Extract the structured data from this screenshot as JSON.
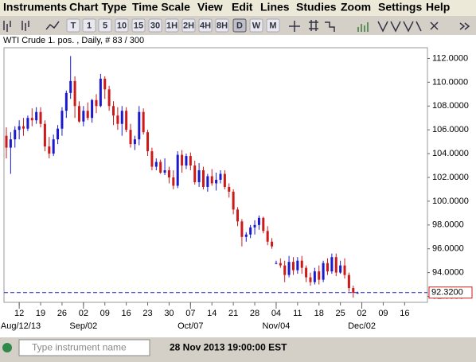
{
  "menu": [
    "Instruments",
    "Chart Type",
    "Time Scale",
    "View",
    "Edit",
    "Lines",
    "Studies",
    "Zoom",
    "Settings",
    "Help"
  ],
  "toolbar": [
    "T",
    "1",
    "5",
    "10",
    "15",
    "30",
    "1H",
    "2H",
    "4H",
    "8H",
    "D",
    "W",
    "M"
  ],
  "status": {
    "search_placeholder": "Type instrument name",
    "time": "28 Nov 2013 19:00:00 EST"
  },
  "chart_data": {
    "type": "candlestick",
    "title": "WTI Crude 1. pos. , Daily, # 83 / 300",
    "x": [
      "2013-08-07",
      "2013-08-08",
      "2013-08-09",
      "2013-08-12",
      "2013-08-13",
      "2013-08-14",
      "2013-08-15",
      "2013-08-16",
      "2013-08-19",
      "2013-08-20",
      "2013-08-21",
      "2013-08-22",
      "2013-08-23",
      "2013-08-26",
      "2013-08-27",
      "2013-08-28",
      "2013-08-29",
      "2013-08-30",
      "2013-09-02",
      "2013-09-03",
      "2013-09-04",
      "2013-09-05",
      "2013-09-06",
      "2013-09-09",
      "2013-09-10",
      "2013-09-11",
      "2013-09-12",
      "2013-09-13",
      "2013-09-16",
      "2013-09-17",
      "2013-09-18",
      "2013-09-19",
      "2013-09-20",
      "2013-09-23",
      "2013-09-24",
      "2013-09-25",
      "2013-09-26",
      "2013-09-27",
      "2013-09-30",
      "2013-10-01",
      "2013-10-02",
      "2013-10-03",
      "2013-10-04",
      "2013-10-07",
      "2013-10-08",
      "2013-10-09",
      "2013-10-10",
      "2013-10-11",
      "2013-10-14",
      "2013-10-15",
      "2013-10-16",
      "2013-10-17",
      "2013-10-18",
      "2013-10-21",
      "2013-10-22",
      "2013-10-23",
      "2013-10-24",
      "2013-10-25",
      "2013-10-28",
      "2013-10-29",
      "2013-10-30",
      "2013-10-31",
      "2013-11-01",
      "2013-11-04",
      "2013-11-05",
      "2013-11-06",
      "2013-11-07",
      "2013-11-08",
      "2013-11-11",
      "2013-11-12",
      "2013-11-13",
      "2013-11-14",
      "2013-11-15",
      "2013-11-18",
      "2013-11-19",
      "2013-11-20",
      "2013-11-21",
      "2013-11-22",
      "2013-11-25",
      "2013-11-26",
      "2013-11-27",
      "2013-11-28",
      "2013-11-29"
    ],
    "open": [
      105.5,
      104.5,
      105.2,
      106.0,
      106.3,
      106.1,
      107.0,
      106.8,
      107.5,
      106.5,
      104.6,
      104.0,
      105.2,
      106.1,
      107.6,
      109.1,
      110.1,
      108.0,
      106.7,
      107.6,
      107.0,
      108.5,
      108.0,
      110.3,
      109.4,
      108.0,
      107.2,
      106.5,
      107.6,
      106.0,
      104.8,
      105.2,
      107.5,
      105.8,
      104.2,
      102.9,
      103.3,
      102.4,
      102.6,
      102.0,
      101.3,
      103.9,
      103.0,
      103.8,
      103.0,
      101.6,
      102.6,
      101.2,
      102.1,
      101.5,
      101.8,
      102.3,
      101.2,
      100.8,
      99.3,
      98.3,
      97.0,
      97.2,
      97.8,
      98.0,
      98.6,
      97.5,
      96.6,
      94.8,
      94.8,
      94.6,
      93.8,
      94.9,
      94.2,
      95.0,
      94.4,
      93.6,
      93.2,
      94.1,
      93.4,
      94.8,
      94.1,
      95.3,
      94.0,
      94.6,
      93.8,
      92.7,
      92.3
    ],
    "high": [
      106.2,
      105.8,
      106.3,
      106.8,
      107.0,
      107.2,
      107.8,
      107.9,
      107.9,
      106.8,
      105.4,
      105.6,
      106.4,
      107.9,
      109.3,
      112.2,
      110.5,
      108.4,
      108.0,
      108.3,
      108.6,
      109.0,
      110.7,
      110.5,
      109.7,
      108.4,
      107.9,
      108.0,
      107.9,
      106.5,
      105.5,
      108.0,
      107.8,
      106.0,
      104.5,
      103.6,
      103.5,
      103.6,
      102.9,
      102.6,
      104.2,
      104.3,
      104.0,
      104.1,
      103.4,
      103.2,
      102.9,
      102.3,
      102.7,
      102.4,
      102.6,
      102.6,
      101.5,
      101.0,
      99.5,
      98.5,
      97.4,
      98.0,
      98.4,
      98.8,
      98.7,
      97.9,
      96.9,
      95.0,
      95.2,
      95.0,
      95.4,
      95.3,
      95.3,
      95.4,
      94.6,
      94.0,
      94.4,
      94.6,
      95.0,
      95.2,
      95.6,
      95.6,
      95.0,
      95.2,
      94.0,
      92.9,
      92.4
    ],
    "low": [
      103.6,
      102.3,
      104.5,
      105.2,
      105.5,
      105.9,
      106.3,
      106.5,
      106.2,
      104.2,
      103.6,
      103.8,
      104.8,
      105.5,
      107.0,
      108.6,
      107.0,
      106.6,
      106.3,
      106.8,
      106.6,
      107.4,
      107.9,
      108.6,
      107.6,
      106.4,
      106.0,
      105.5,
      105.8,
      104.5,
      104.3,
      104.7,
      105.6,
      103.8,
      102.6,
      102.6,
      102.3,
      102.2,
      101.5,
      101.0,
      101.1,
      102.4,
      102.7,
      102.6,
      101.4,
      101.2,
      101.0,
      100.8,
      101.3,
      100.9,
      101.5,
      101.0,
      100.3,
      98.9,
      97.9,
      96.2,
      96.6,
      96.9,
      97.2,
      97.6,
      97.3,
      96.3,
      96.0,
      94.7,
      94.4,
      93.2,
      93.6,
      93.8,
      93.9,
      93.9,
      93.2,
      92.9,
      93.0,
      93.0,
      93.2,
      93.8,
      93.9,
      93.7,
      93.9,
      93.5,
      92.4,
      91.9,
      92.2
    ],
    "close": [
      104.5,
      105.2,
      106.0,
      106.3,
      106.1,
      107.0,
      106.8,
      107.5,
      106.5,
      104.6,
      104.0,
      105.2,
      106.1,
      107.6,
      109.1,
      110.1,
      108.0,
      106.7,
      107.6,
      107.0,
      108.5,
      108.0,
      110.3,
      109.4,
      108.0,
      107.2,
      106.5,
      107.6,
      106.0,
      104.8,
      105.2,
      107.5,
      105.8,
      104.2,
      102.9,
      103.3,
      102.4,
      102.6,
      102.0,
      101.3,
      103.9,
      103.0,
      103.8,
      103.0,
      101.6,
      102.6,
      101.2,
      102.1,
      101.5,
      101.8,
      102.3,
      101.2,
      100.8,
      99.3,
      98.3,
      97.0,
      97.2,
      97.8,
      98.0,
      98.6,
      97.5,
      96.6,
      96.2,
      94.8,
      94.6,
      93.8,
      94.9,
      94.2,
      95.0,
      94.4,
      93.6,
      93.2,
      94.1,
      93.4,
      94.8,
      94.1,
      95.3,
      94.0,
      94.6,
      93.8,
      92.7,
      92.3,
      92.32
    ],
    "up_color": "#1a1acc",
    "down_color": "#cc1a1a",
    "ylim": [
      91.5,
      112.9
    ],
    "yticks": [
      {
        "value": 92,
        "label": "92.0000"
      },
      {
        "value": 94,
        "label": "94.0000"
      },
      {
        "value": 96,
        "label": "96.0000"
      },
      {
        "value": 98,
        "label": "98.0000"
      },
      {
        "value": 100,
        "label": "100.0000"
      },
      {
        "value": 102,
        "label": "102.0000"
      },
      {
        "value": 104,
        "label": "104.0000"
      },
      {
        "value": 106,
        "label": "106.0000"
      },
      {
        "value": 108,
        "label": "108.0000"
      },
      {
        "value": 110,
        "label": "110.0000"
      },
      {
        "value": 112,
        "label": "112.0000"
      }
    ],
    "xticks": [
      {
        "value": "2013-08-12",
        "label": "12"
      },
      {
        "value": "2013-08-19",
        "label": "19"
      },
      {
        "value": "2013-08-26",
        "label": "26"
      },
      {
        "value": "2013-09-02",
        "label": "02"
      },
      {
        "value": "2013-09-09",
        "label": "09"
      },
      {
        "value": "2013-09-16",
        "label": "16"
      },
      {
        "value": "2013-09-23",
        "label": "23"
      },
      {
        "value": "2013-09-30",
        "label": "30"
      },
      {
        "value": "2013-10-07",
        "label": "07"
      },
      {
        "value": "2013-10-14",
        "label": "14"
      },
      {
        "value": "2013-10-21",
        "label": "21"
      },
      {
        "value": "2013-10-28",
        "label": "28"
      },
      {
        "value": "2013-11-04",
        "label": "04"
      },
      {
        "value": "2013-11-11",
        "label": "11"
      },
      {
        "value": "2013-11-18",
        "label": "18"
      },
      {
        "value": "2013-11-25",
        "label": "25"
      },
      {
        "value": "2013-12-02",
        "label": "02"
      },
      {
        "value": "2013-12-09",
        "label": "09"
      },
      {
        "value": "2013-12-16",
        "label": "16"
      }
    ],
    "xticks_major": [
      {
        "value": "2013-08-12",
        "label": "Aug/12/13"
      },
      {
        "value": "2013-09-02",
        "label": "Sep/02"
      },
      {
        "value": "2013-10-07",
        "label": "Oct/07"
      },
      {
        "value": "2013-11-04",
        "label": "Nov/04"
      },
      {
        "value": "2013-12-02",
        "label": "Dec/02"
      }
    ],
    "last_price": {
      "value": 92.32,
      "label": "92.3200"
    },
    "price_line_color": "#1a1acc"
  }
}
